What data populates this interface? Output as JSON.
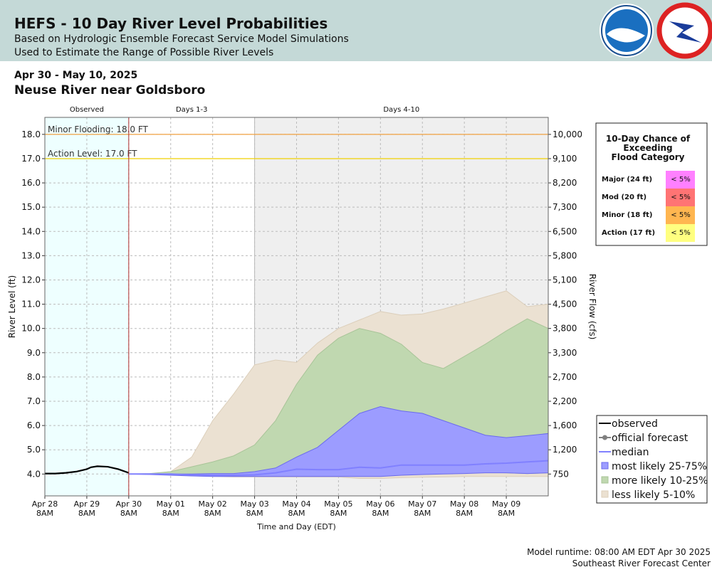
{
  "header": {
    "title": "HEFS - 10 Day River Level Probabilities",
    "subtitle1": "Based on Hydrologic Ensemble Forecast Service Model Simulations",
    "subtitle2": "Used to Estimate the Range of Possible River Levels"
  },
  "date_range": "Apr 30 - May 10, 2025",
  "location": "Neuse River near Goldsboro",
  "footer": {
    "runtime": "Model runtime: 08:00 AM EDT Apr 30 2025",
    "center": "Southeast River Forecast Center"
  },
  "flood_table": {
    "title": [
      "10-Day Chance of",
      "Exceeding",
      "Flood Category"
    ],
    "rows": [
      {
        "label": "Major (24 ft)",
        "chance": "< 5%",
        "color": "#ff80ff"
      },
      {
        "label": "Mod (20 ft)",
        "chance": "< 5%",
        "color": "#ff7474"
      },
      {
        "label": "Minor (18 ft)",
        "chance": "< 5%",
        "color": "#ffb650"
      },
      {
        "label": "Action (17 ft)",
        "chance": "< 5%",
        "color": "#ffff80"
      }
    ]
  },
  "chart_data": {
    "type": "area",
    "ylabel": "River Level (ft)",
    "y2label": "River Flow (cfs)",
    "xlabel": "Time and Day (EDT)",
    "xlim": [
      0,
      12
    ],
    "ylim": [
      3.1,
      18.7
    ],
    "xticks": [
      {
        "value": 0,
        "label": "Apr 28"
      },
      {
        "value": 1,
        "label": "Apr 29"
      },
      {
        "value": 2,
        "label": "Apr 30"
      },
      {
        "value": 3,
        "label": "May 01"
      },
      {
        "value": 4,
        "label": "May 02"
      },
      {
        "value": 5,
        "label": "May 03"
      },
      {
        "value": 6,
        "label": "May 04"
      },
      {
        "value": 7,
        "label": "May 05"
      },
      {
        "value": 8,
        "label": "May 06"
      },
      {
        "value": 9,
        "label": "May 07"
      },
      {
        "value": 10,
        "label": "May 08"
      },
      {
        "value": 11,
        "label": "May 09"
      }
    ],
    "xtick_times": [
      "8AM",
      "8AM",
      "8AM",
      "8AM",
      "8AM",
      "8AM",
      "8AM",
      "8AM",
      "8AM",
      "8AM",
      "8AM",
      "8AM"
    ],
    "yticks": [
      {
        "value": 4,
        "label": "4.0"
      },
      {
        "value": 5,
        "label": "5.0"
      },
      {
        "value": 6,
        "label": "6.0"
      },
      {
        "value": 7,
        "label": "7.0"
      },
      {
        "value": 8,
        "label": "8.0"
      },
      {
        "value": 9,
        "label": "9.0"
      },
      {
        "value": 10,
        "label": "10.0"
      },
      {
        "value": 11,
        "label": "11.0"
      },
      {
        "value": 12,
        "label": "12.0"
      },
      {
        "value": 13,
        "label": "13.0"
      },
      {
        "value": 14,
        "label": "14.0"
      },
      {
        "value": 15,
        "label": "15.0"
      },
      {
        "value": 16,
        "label": "16.0"
      },
      {
        "value": 17,
        "label": "17.0"
      },
      {
        "value": 18,
        "label": "18.0"
      }
    ],
    "y2ticks": [
      {
        "value": 750,
        "label": "750"
      },
      {
        "value": 1200,
        "label": "1,200"
      },
      {
        "value": 1600,
        "label": "1,600"
      },
      {
        "value": 2200,
        "label": "2,200"
      },
      {
        "value": 2700,
        "label": "2,700"
      },
      {
        "value": 3300,
        "label": "3,300"
      },
      {
        "value": 3800,
        "label": "3,800"
      },
      {
        "value": 4500,
        "label": "4,500"
      },
      {
        "value": 5100,
        "label": "5,100"
      },
      {
        "value": 5800,
        "label": "5,800"
      },
      {
        "value": 6500,
        "label": "6,500"
      },
      {
        "value": 7300,
        "label": "7,300"
      },
      {
        "value": 8200,
        "label": "8,200"
      },
      {
        "value": 9100,
        "label": "9,100"
      },
      {
        "value": 10000,
        "label": "10,000"
      }
    ],
    "grid": true,
    "regions": [
      {
        "label": "Observed",
        "start": 0,
        "end": 2,
        "color": "#eeffff"
      },
      {
        "label": "Days 1-3",
        "start": 2,
        "end": 5,
        "color": "#ffffff"
      },
      {
        "label": "Days 4-10",
        "start": 5,
        "end": 12,
        "color": "#efefef"
      }
    ],
    "forecast_start": 2,
    "thresholds": [
      {
        "label": "Minor Flooding: 18.0 FT",
        "value": 18,
        "color": "#f0a040"
      },
      {
        "label": "Action Level: 17.0 FT",
        "value": 17,
        "color": "#f0d000"
      }
    ],
    "series": [
      {
        "name": "observed",
        "style": "line",
        "color": "#000000",
        "x": [
          0,
          0.25,
          0.5,
          0.75,
          1,
          1.1,
          1.25,
          1.5,
          1.75,
          2
        ],
        "values": [
          4.02,
          4.02,
          4.05,
          4.1,
          4.2,
          4.28,
          4.32,
          4.3,
          4.2,
          4.05
        ]
      },
      {
        "name": "official forecast",
        "style": "line-marker",
        "color": "#808080"
      },
      {
        "name": "median",
        "style": "line",
        "color": "#8080ff",
        "x": [
          2,
          2.5,
          3,
          3.5,
          4,
          4.5,
          5,
          5.5,
          6,
          6.5,
          7,
          7.5,
          8,
          8.5,
          9,
          9.5,
          10,
          10.5,
          11,
          11.5,
          12
        ],
        "values": [
          4.0,
          4.0,
          4.0,
          3.96,
          3.95,
          3.95,
          3.97,
          4.05,
          4.2,
          4.18,
          4.18,
          4.28,
          4.25,
          4.37,
          4.37,
          4.37,
          4.37,
          4.42,
          4.45,
          4.5,
          4.55
        ]
      },
      {
        "name": "most likely 25-75%",
        "style": "band",
        "color": "#9c9cff",
        "edge": "#6a6aee",
        "x": [
          2,
          2.5,
          3,
          3.5,
          4,
          4.5,
          5,
          5.5,
          6,
          6.5,
          7,
          7.5,
          8,
          8.5,
          9,
          9.5,
          10,
          10.5,
          11,
          11.5,
          12
        ],
        "low": [
          4.0,
          3.98,
          3.95,
          3.92,
          3.9,
          3.9,
          3.9,
          3.9,
          3.9,
          3.9,
          3.9,
          3.9,
          3.9,
          3.95,
          3.98,
          4.0,
          4.02,
          4.05,
          4.05,
          4.02,
          4.05
        ],
        "high": [
          4.0,
          4.0,
          4.0,
          4.0,
          4.02,
          4.02,
          4.1,
          4.25,
          4.7,
          5.1,
          5.8,
          6.5,
          6.78,
          6.6,
          6.5,
          6.2,
          5.9,
          5.6,
          5.5,
          5.58,
          5.67
        ]
      },
      {
        "name": "more likely 10-25%",
        "style": "band",
        "color": "#c0d8b0",
        "edge": "#a8c498",
        "x": [
          2,
          2.5,
          3,
          3.5,
          4,
          4.5,
          5,
          5.5,
          6,
          6.5,
          7,
          7.5,
          8,
          8.5,
          9,
          9.5,
          10,
          10.5,
          11,
          11.5,
          12
        ],
        "low": [
          4.0,
          4.0,
          3.98,
          3.95,
          3.93,
          3.92,
          3.92,
          3.92,
          3.92,
          3.92,
          3.92,
          3.95,
          3.98,
          4.0,
          4.03,
          4.05,
          4.08,
          4.07,
          4.05,
          4.02,
          4.05
        ],
        "high": [
          4.0,
          4.02,
          4.1,
          4.3,
          4.5,
          4.75,
          5.2,
          6.2,
          7.7,
          8.9,
          9.6,
          10.0,
          9.8,
          9.35,
          8.6,
          8.35,
          8.85,
          9.35,
          9.9,
          10.4,
          10.0
        ]
      },
      {
        "name": "less likely 5-10%",
        "style": "band",
        "color": "#ebe1d2",
        "edge": "#dccfbb",
        "x": [
          2,
          2.5,
          3,
          3.5,
          4,
          4.5,
          5,
          5.5,
          6,
          6.5,
          7,
          7.5,
          8,
          8.5,
          9,
          9.5,
          10,
          10.5,
          11,
          11.5,
          12
        ],
        "low": [
          4.0,
          4.0,
          3.98,
          3.93,
          3.9,
          3.88,
          3.88,
          3.88,
          3.88,
          3.88,
          3.88,
          3.82,
          3.82,
          3.85,
          3.87,
          3.88,
          3.9,
          3.9,
          3.9,
          3.9,
          3.9
        ],
        "high": [
          4.0,
          4.0,
          4.1,
          4.7,
          6.2,
          7.3,
          8.5,
          8.7,
          8.6,
          9.4,
          10.0,
          10.35,
          10.7,
          10.55,
          10.6,
          10.8,
          11.05,
          11.3,
          11.55,
          10.9,
          11.0
        ]
      }
    ]
  }
}
